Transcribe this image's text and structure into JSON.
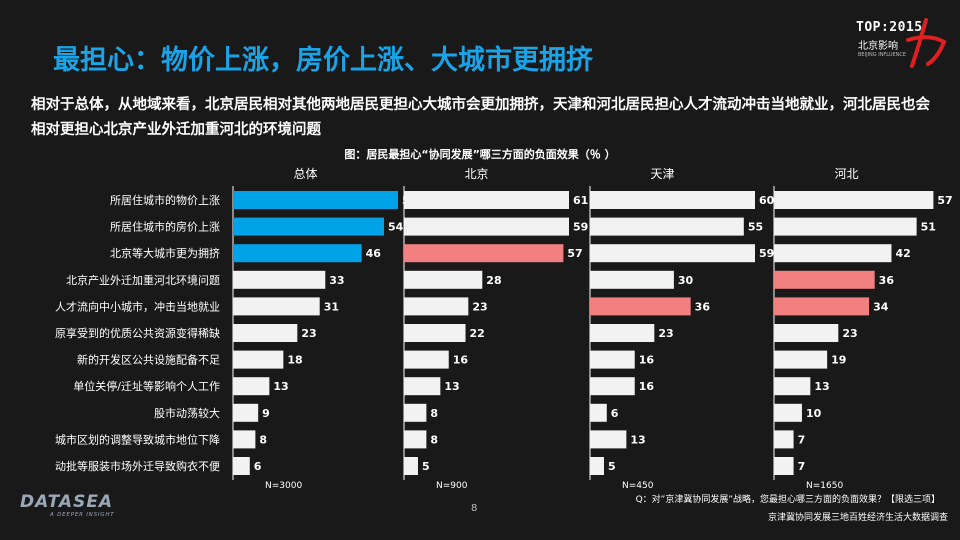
{
  "page": {
    "title": "最担心：物价上涨，房价上涨、大城市更拥挤",
    "subtitle": "相对于总体，从地域来看，北京居民相对其他两地居民更担心大城市会更加拥挤，天津和河北居民担心人才流动冲击当地就业，河北居民也会相对更担心北京产业外迁加重河北的环境问题",
    "logo_top": {
      "line1": "TOP:2015",
      "line2": "北京影响",
      "line3": "BEIJING INFLUENCE"
    },
    "logo_bottom": {
      "brand": "DATASEA",
      "tagline": "A DEEPER INSIGHT"
    },
    "page_number": "8",
    "note": "Q：对”京津冀协同发展”战略，您最担心哪三方面的负面效果？【限选三项】",
    "source": "京津冀协同发展三地百姓经济生活大数据调查"
  },
  "chart_data": {
    "type": "bar",
    "orientation": "horizontal",
    "title": "图：居民最担心“协同发展”哪三方面的负面效果（％ ）",
    "categories": [
      "所居住城市的物价上涨",
      "所居住城市的房价上涨",
      "北京等大城市更为拥挤",
      "北京产业外迁加重河北环境问题",
      "人才流向中小城市，冲击当地就业",
      "原享受到的优质公共资源变得稀缺",
      "新的开发区公共设施配备不足",
      "单位关停/迁址等影响个人工作",
      "股市动荡较大",
      "城市区划的调整导致城市地位下降",
      "动批等服装市场外迁导致购衣不便"
    ],
    "panels": [
      {
        "name": "总体",
        "n": "N=3000",
        "values": [
          59,
          54,
          46,
          33,
          31,
          23,
          18,
          13,
          9,
          8,
          6
        ],
        "highlight": [
          0,
          1,
          2
        ],
        "highlight_color": "#00a3e8"
      },
      {
        "name": "北京",
        "n": "N=900",
        "values": [
          61,
          59,
          57,
          28,
          23,
          22,
          16,
          13,
          8,
          8,
          5
        ],
        "highlight": [
          2
        ],
        "highlight_color": "#f28080"
      },
      {
        "name": "天津",
        "n": "N=450",
        "values": [
          60,
          55,
          59,
          30,
          36,
          23,
          16,
          16,
          6,
          13,
          5
        ],
        "highlight": [
          4
        ],
        "highlight_color": "#f28080"
      },
      {
        "name": "河北",
        "n": "N=1650",
        "values": [
          57,
          51,
          42,
          36,
          34,
          23,
          19,
          13,
          10,
          7,
          7
        ],
        "highlight": [
          3,
          4
        ],
        "highlight_color": "#f28080"
      }
    ],
    "xlim": [
      0,
      59
    ],
    "bar_color": "#f2f2f2",
    "grid": false,
    "legend": "none"
  }
}
